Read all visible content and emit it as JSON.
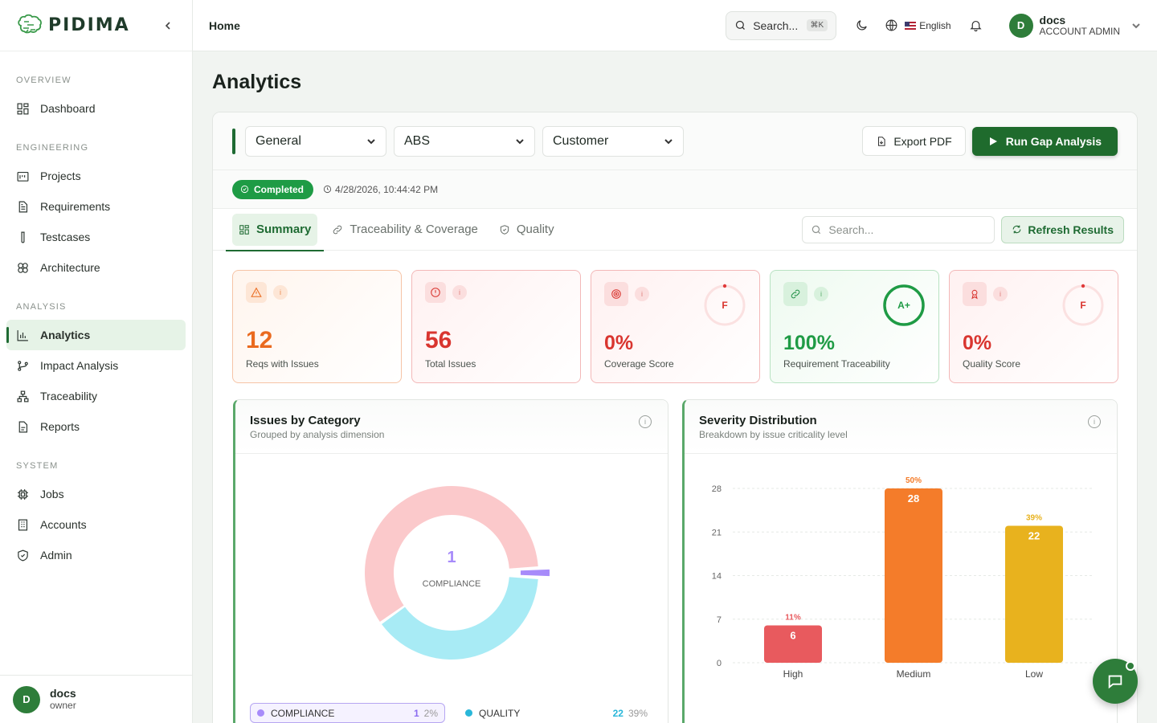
{
  "brand": {
    "name": "PIDIMA"
  },
  "sidebar": {
    "sections": [
      {
        "heading": "OVERVIEW",
        "items": [
          {
            "label": "Dashboard",
            "icon": "dashboard-icon"
          }
        ]
      },
      {
        "heading": "ENGINEERING",
        "items": [
          {
            "label": "Projects",
            "icon": "folder-icon"
          },
          {
            "label": "Requirements",
            "icon": "document-icon"
          },
          {
            "label": "Testcases",
            "icon": "test-tube-icon"
          },
          {
            "label": "Architecture",
            "icon": "architecture-icon"
          }
        ]
      },
      {
        "heading": "ANALYSIS",
        "items": [
          {
            "label": "Analytics",
            "icon": "bar-chart-icon",
            "active": true
          },
          {
            "label": "Impact Analysis",
            "icon": "git-branch-icon"
          },
          {
            "label": "Traceability",
            "icon": "network-icon"
          },
          {
            "label": "Reports",
            "icon": "report-icon"
          }
        ]
      },
      {
        "heading": "SYSTEM",
        "items": [
          {
            "label": "Jobs",
            "icon": "cpu-icon"
          },
          {
            "label": "Accounts",
            "icon": "building-icon"
          },
          {
            "label": "Admin",
            "icon": "shield-icon"
          }
        ]
      }
    ],
    "footer_user": {
      "initial": "D",
      "name": "docs",
      "role": "owner"
    }
  },
  "topbar": {
    "breadcrumb": "Home",
    "search_label": "Search...",
    "search_shortcut": "⌘K",
    "language": "English",
    "user": {
      "initial": "D",
      "name": "docs",
      "role": "ACCOUNT ADMIN"
    }
  },
  "page": {
    "title": "Analytics"
  },
  "filters": {
    "selects": [
      {
        "value": "General"
      },
      {
        "value": "ABS"
      },
      {
        "value": "Customer"
      }
    ],
    "export_label": "Export PDF",
    "run_label": "Run Gap Analysis"
  },
  "status": {
    "badge": "Completed",
    "timestamp": "4/28/2026, 10:44:42 PM"
  },
  "tabs": {
    "items": [
      {
        "label": "Summary",
        "icon": "grid-icon",
        "active": true
      },
      {
        "label": "Traceability & Coverage",
        "icon": "link-icon"
      },
      {
        "label": "Quality",
        "icon": "shield-icon"
      }
    ],
    "search_placeholder": "Search...",
    "refresh_label": "Refresh Results"
  },
  "kpis": [
    {
      "value": "12",
      "label": "Reqs with Issues",
      "tone": "orange",
      "icon": "warning-icon"
    },
    {
      "value": "56",
      "label": "Total Issues",
      "tone": "red",
      "icon": "alert-circle-icon"
    },
    {
      "value": "0%",
      "label": "Coverage Score",
      "tone": "red",
      "icon": "target-icon",
      "grade": "F",
      "grade_fraction": 0
    },
    {
      "value": "100%",
      "label": "Requirement Traceability",
      "tone": "green",
      "icon": "link-icon",
      "grade": "A+",
      "grade_fraction": 1
    },
    {
      "value": "0%",
      "label": "Quality Score",
      "tone": "red",
      "icon": "award-icon",
      "grade": "F",
      "grade_fraction": 0
    }
  ],
  "issues_card": {
    "title": "Issues by Category",
    "subtitle": "Grouped by analysis dimension",
    "center_value": "1",
    "center_label": "COMPLIANCE",
    "legend": [
      {
        "name": "COMPLIANCE",
        "count": "1",
        "pct": "2%",
        "color": "#a78bfa"
      },
      {
        "name": "QUALITY",
        "count": "22",
        "pct": "39%",
        "color": "#29b7d9"
      }
    ]
  },
  "severity_card": {
    "title": "Severity Distribution",
    "subtitle": "Breakdown by issue criticality level"
  },
  "chart_data": [
    {
      "type": "pie",
      "title": "Issues by Category",
      "slices": [
        {
          "label": "COMPLIANCE",
          "value": 1,
          "pct": "2%",
          "color": "#a78bfa"
        },
        {
          "label": "QUALITY",
          "value": 22,
          "pct": "39%",
          "color": "#a8ebf5"
        },
        {
          "label": "",
          "value": 33,
          "color": "#fbc9cb"
        }
      ],
      "donut": true
    },
    {
      "type": "bar",
      "title": "Severity Distribution",
      "categories": [
        "High",
        "Medium",
        "Low"
      ],
      "values": [
        6,
        28,
        22
      ],
      "percent_labels": [
        "11%",
        "50%",
        "39%"
      ],
      "colors": [
        "#e85a5e",
        "#f47c2a",
        "#e8b21e"
      ],
      "yticks": [
        0,
        7,
        14,
        21,
        28
      ],
      "ylim": [
        0,
        28
      ],
      "grid": true
    }
  ]
}
